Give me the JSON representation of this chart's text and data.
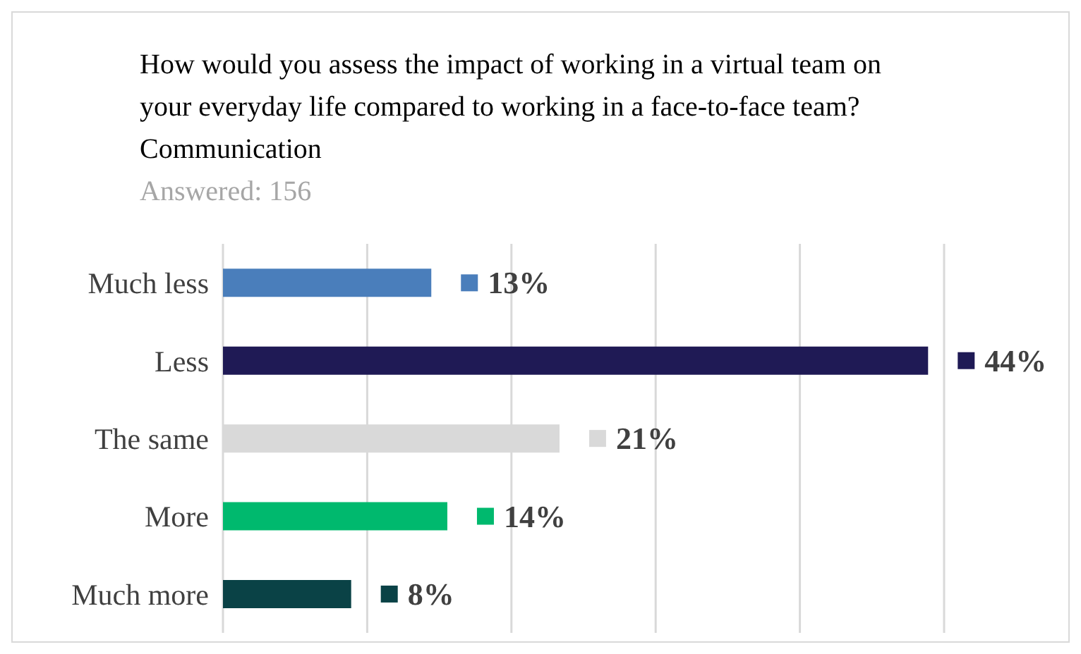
{
  "chart_data": {
    "type": "bar",
    "orientation": "horizontal",
    "title": "How would you assess the impact of working in a virtual team on your everyday life compared to working in a face-to-face team? Communication",
    "subtitle": "Answered: 156",
    "categories": [
      "Much less",
      "Less",
      "The same",
      "More",
      "Much more"
    ],
    "values": [
      13,
      44,
      21,
      14,
      8
    ],
    "colors": [
      "#4a7ebb",
      "#1f1a55",
      "#d9d9d9",
      "#00b96e",
      "#0a4246"
    ],
    "value_labels": [
      "13%",
      "44%",
      "21%",
      "14%",
      "8%"
    ],
    "tick_labels": "y",
    "grid": "x"
  }
}
